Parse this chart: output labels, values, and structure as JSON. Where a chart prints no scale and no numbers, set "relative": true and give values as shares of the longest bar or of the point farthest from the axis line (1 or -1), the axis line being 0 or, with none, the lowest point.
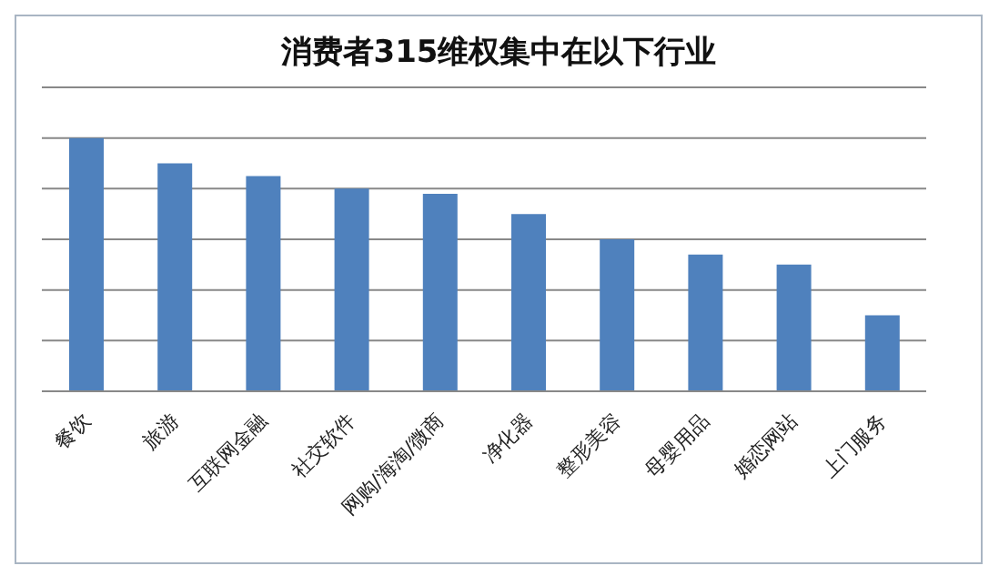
{
  "chart_data": {
    "type": "bar",
    "title": "消费者315维权集中在以下行业",
    "relative": true,
    "grid": "y",
    "legend": false,
    "categories": [
      "餐饮",
      "旅游",
      "互联网金融",
      "社交软件",
      "网购/海淘/微商",
      "净化器",
      "整形美容",
      "母婴用品",
      "婚恋网站",
      "上门服务"
    ],
    "series": [
      {
        "color": "#4f81bd",
        "values": [
          1,
          0.9,
          0.85,
          0.8,
          0.78,
          0.7,
          0.6,
          0.54,
          0.5,
          0.3
        ]
      }
    ]
  }
}
